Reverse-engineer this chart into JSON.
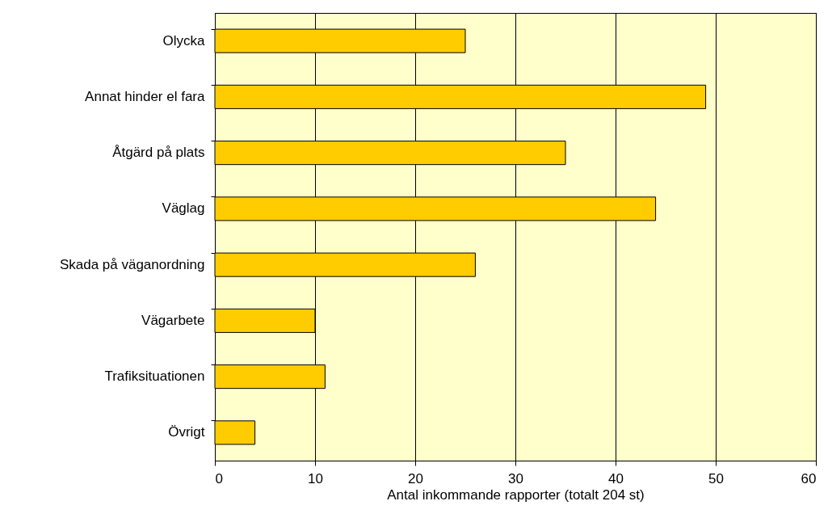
{
  "chart_data": {
    "type": "bar",
    "orientation": "horizontal",
    "xlabel": "Antal inkommande rapporter (totalt 204 st)",
    "categories": [
      "Olycka",
      "Annat hinder el fara",
      "Åtgärd på plats",
      "Väglag",
      "Skada på väganordning",
      "Vägarbete",
      "Trafiksituationen",
      "Övrigt"
    ],
    "values": [
      25,
      49,
      35,
      44,
      26,
      10,
      11,
      4
    ],
    "color": "#ffcc00",
    "xlim": [
      0,
      60
    ],
    "xticks": [
      0,
      10,
      20,
      30,
      40,
      50,
      60
    ],
    "grid": "x"
  }
}
